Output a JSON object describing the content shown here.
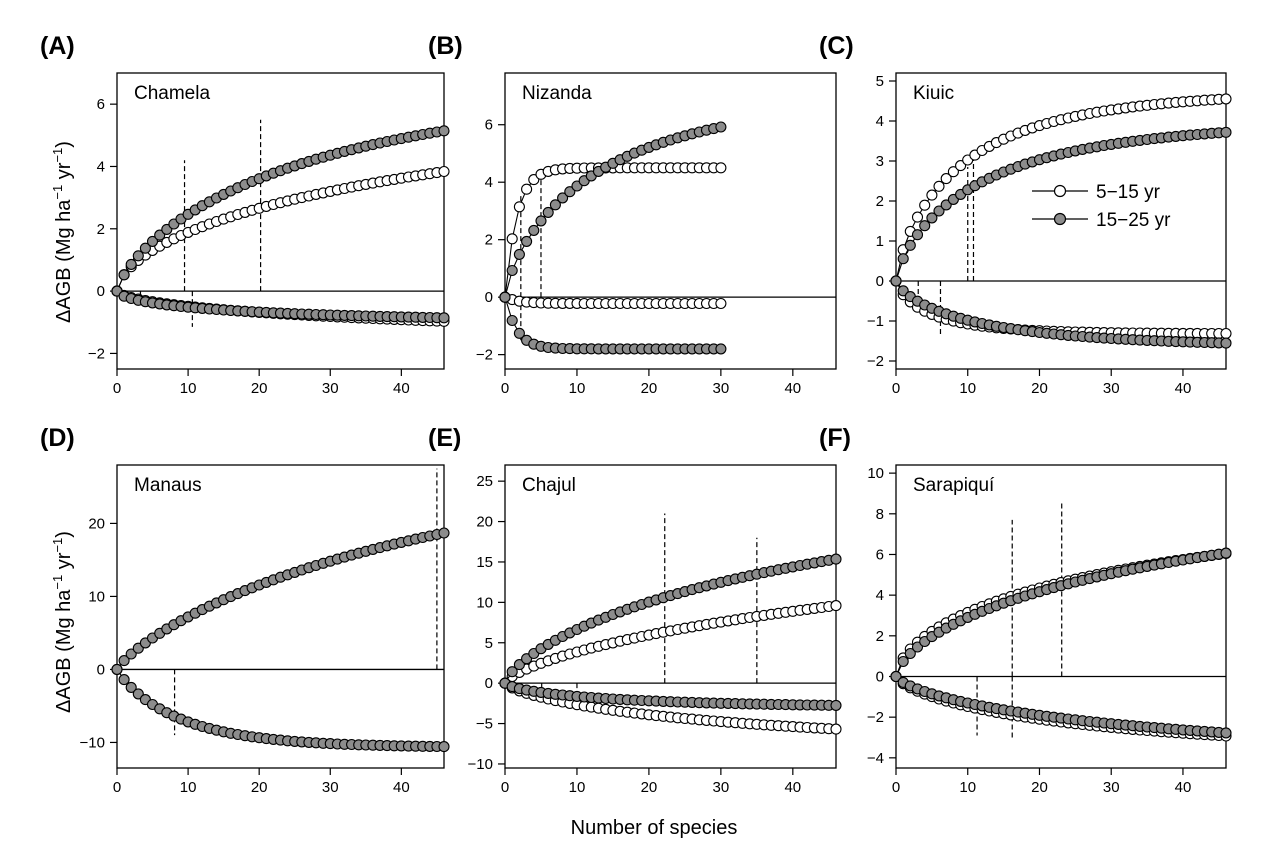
{
  "figure": {
    "xlabel": "Number of species",
    "ylabel": "ΔAGB (Mg ha⁻¹ yr⁻¹)",
    "legend": {
      "placement": "panel C, right",
      "entries": [
        {
          "name": "5−15 yr",
          "fill": "#ffffff"
        },
        {
          "name": "15−25 yr",
          "fill": "#8c8c8c"
        }
      ]
    },
    "colors": {
      "open_marker": "#ffffff",
      "filled_marker": "#8c8c8c",
      "stroke": "#000000"
    }
  },
  "chart_data": [
    {
      "type": "line",
      "panel": "(A)",
      "site": "Chamela",
      "xlim": [
        0,
        46
      ],
      "ylim": [
        -2.5,
        7
      ],
      "xticks": [
        0,
        10,
        20,
        30,
        40
      ],
      "yticks": [
        -2,
        0,
        2,
        4,
        6
      ],
      "n": [
        47,
        47
      ],
      "curves": [
        {
          "series": "5−15 yr",
          "direction": "positive",
          "asym": 7.3,
          "k": 0.075,
          "power": 0.6
        },
        {
          "series": "15−25 yr",
          "direction": "positive",
          "asym": 6.8,
          "k": 0.08,
          "power": 0.75
        },
        {
          "series": "5−15 yr",
          "direction": "negative",
          "asym": -1.7,
          "k": 0.085,
          "power": 0.6
        },
        {
          "series": "15−25 yr",
          "direction": "negative",
          "asym": -1.05,
          "k": 0.17,
          "power": 0.6
        }
      ],
      "vlines": [
        {
          "x": 9.5,
          "y": 4.2
        },
        {
          "x": 20.2,
          "y": 5.5
        },
        {
          "x": 3.3,
          "y": -0.4
        },
        {
          "x": 10.6,
          "y": -1.15
        }
      ]
    },
    {
      "type": "line",
      "panel": "(B)",
      "site": "Nizanda",
      "xlim": [
        0,
        46
      ],
      "ylim": [
        -2.5,
        7.8
      ],
      "xticks": [
        0,
        10,
        20,
        30,
        40
      ],
      "yticks": [
        -2,
        0,
        2,
        4,
        6
      ],
      "n": [
        31,
        31
      ],
      "curves": [
        {
          "series": "5−15 yr",
          "direction": "positive",
          "asym": 4.5,
          "k": 0.6,
          "power": 1
        },
        {
          "series": "15−25 yr",
          "direction": "positive",
          "asym": 7.1,
          "k": 0.14,
          "power": 0.75
        },
        {
          "series": "5−15 yr",
          "direction": "negative",
          "asym": -0.22,
          "k": 0.5,
          "power": 1
        },
        {
          "series": "15−25 yr",
          "direction": "negative",
          "asym": -1.8,
          "k": 0.6,
          "power": 1
        }
      ],
      "vlines": [
        {
          "x": 2.2,
          "y": 3.6
        },
        {
          "x": 5.0,
          "y": 4.3
        },
        {
          "x": 2.2,
          "y": -1.5
        }
      ]
    },
    {
      "type": "line",
      "panel": "(C)",
      "site": "Kiuic",
      "xlim": [
        0,
        46
      ],
      "ylim": [
        -2.2,
        5.2
      ],
      "xticks": [
        0,
        10,
        20,
        30,
        40
      ],
      "yticks": [
        -2,
        -1,
        0,
        1,
        2,
        3,
        4,
        5
      ],
      "n": [
        47,
        47
      ],
      "curves": [
        {
          "series": "5−15 yr",
          "direction": "positive",
          "asym": 4.75,
          "k": 0.18,
          "power": 0.75
        },
        {
          "series": "15−25 yr",
          "direction": "positive",
          "asym": 4.0,
          "k": 0.15,
          "power": 0.75
        },
        {
          "series": "5−15 yr",
          "direction": "negative",
          "asym": -1.32,
          "k": 0.3,
          "power": 0.75
        },
        {
          "series": "15−25 yr",
          "direction": "negative",
          "asym": -1.65,
          "k": 0.16,
          "power": 0.75
        }
      ],
      "vlines": [
        {
          "x": 10.0,
          "y": 2.85
        },
        {
          "x": 10.8,
          "y": 3.15
        },
        {
          "x": 3.1,
          "y": -0.75
        },
        {
          "x": 6.2,
          "y": -1.35
        }
      ]
    },
    {
      "type": "line",
      "panel": "(D)",
      "site": "Manaus",
      "xlim": [
        0,
        46
      ],
      "ylim": [
        -13.5,
        28
      ],
      "xticks": [
        0,
        10,
        20,
        30,
        40
      ],
      "yticks": [
        -10,
        0,
        10,
        20
      ],
      "n": [
        47,
        47
      ],
      "curves": [
        {
          "series": "15−25 yr",
          "direction": "positive",
          "asym": 31,
          "k": 0.04,
          "power": 0.82
        },
        {
          "series": "15−25 yr",
          "direction": "negative",
          "asym": -10.7,
          "k": 0.14,
          "power": 0.9
        }
      ],
      "vlines": [
        {
          "x": 45.0,
          "y": 27.5
        },
        {
          "x": 8.1,
          "y": -9.0
        }
      ]
    },
    {
      "type": "line",
      "panel": "(E)",
      "site": "Chajul",
      "xlim": [
        0,
        46
      ],
      "ylim": [
        -10.5,
        27
      ],
      "xticks": [
        0,
        10,
        20,
        30,
        40
      ],
      "yticks": [
        -10,
        -5,
        0,
        5,
        10,
        15,
        20,
        25
      ],
      "n": [
        47,
        47
      ],
      "curves": [
        {
          "series": "5−15 yr",
          "direction": "positive",
          "asym": 24,
          "k": 0.035,
          "power": 0.7
        },
        {
          "series": "15−25 yr",
          "direction": "positive",
          "asym": 26.5,
          "k": 0.055,
          "power": 0.72
        },
        {
          "series": "5−15 yr",
          "direction": "negative",
          "asym": -8.2,
          "k": 0.075,
          "power": 0.72
        },
        {
          "series": "15−25 yr",
          "direction": "negative",
          "asym": -3.1,
          "k": 0.15,
          "power": 0.7
        }
      ],
      "vlines": [
        {
          "x": 22.2,
          "y": 21.0
        },
        {
          "x": 35.0,
          "y": 18.0
        },
        {
          "x": 5.1,
          "y": -2.3
        },
        {
          "x": 10.0,
          "y": -2.75
        }
      ]
    },
    {
      "type": "line",
      "panel": "(F)",
      "site": "Sarapiquí",
      "xlim": [
        0,
        46
      ],
      "ylim": [
        -4.5,
        10.4
      ],
      "xticks": [
        0,
        10,
        20,
        30,
        40
      ],
      "yticks": [
        -4,
        -2,
        0,
        2,
        4,
        6,
        8,
        10
      ],
      "n": [
        47,
        47
      ],
      "curves": [
        {
          "series": "5−15 yr",
          "direction": "positive",
          "asym": 9.6,
          "k": 0.1,
          "power": 0.6
        },
        {
          "series": "15−25 yr",
          "direction": "positive",
          "asym": 10.2,
          "k": 0.075,
          "power": 0.65
        },
        {
          "series": "5−15 yr",
          "direction": "negative",
          "asym": -3.9,
          "k": 0.095,
          "power": 0.7
        },
        {
          "series": "15−25 yr",
          "direction": "negative",
          "asym": -4.0,
          "k": 0.075,
          "power": 0.72
        }
      ],
      "vlines": [
        {
          "x": 16.2,
          "y": 7.7
        },
        {
          "x": 23.1,
          "y": 8.6
        },
        {
          "x": 11.3,
          "y": -2.9
        },
        {
          "x": 16.2,
          "y": -3.1
        }
      ]
    }
  ]
}
